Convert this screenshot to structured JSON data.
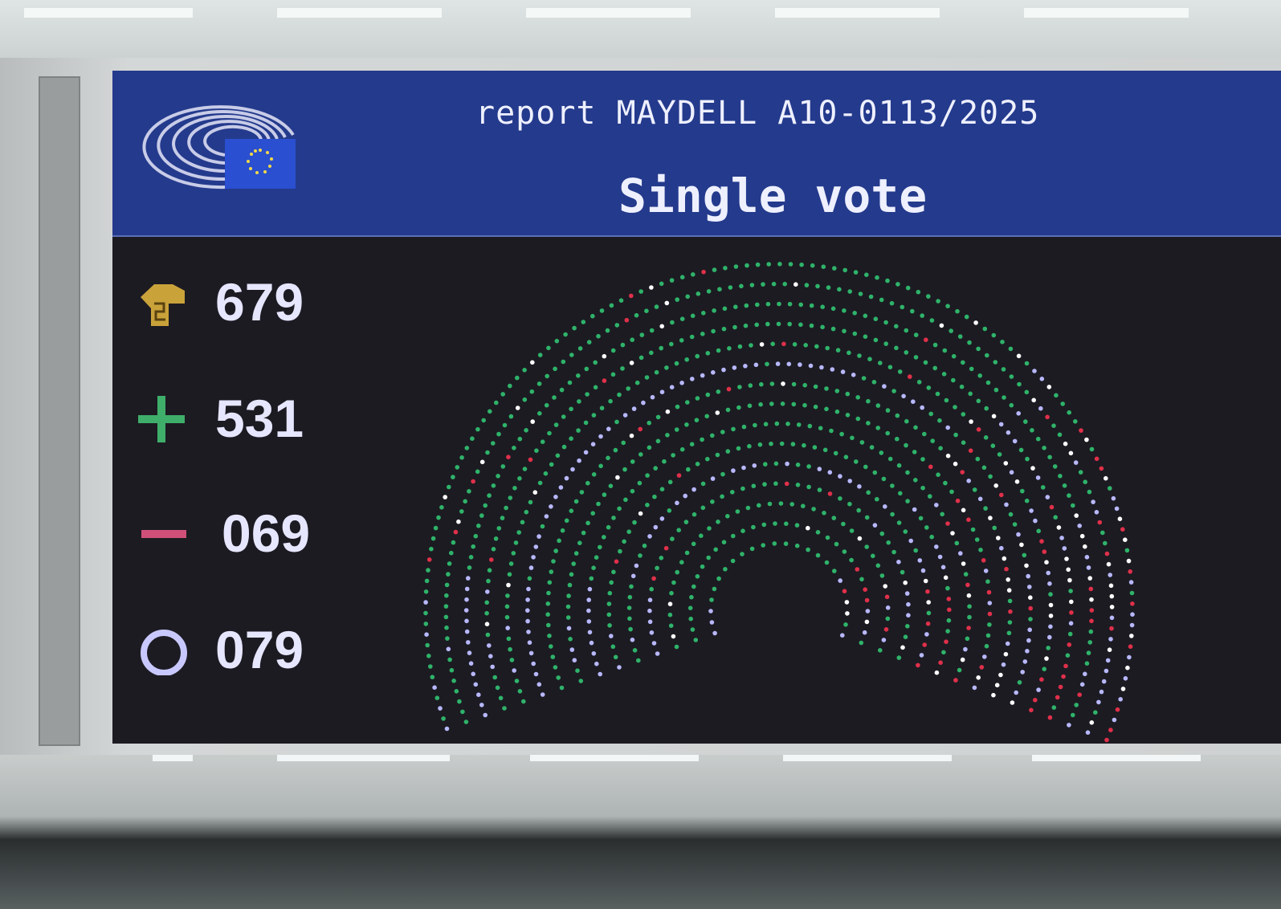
{
  "screen": {
    "report_line": "report MAYDELL A10-0113/2025",
    "title": "Single vote",
    "logo": "European Parliament logo"
  },
  "results": [
    {
      "key": "voted",
      "icon": "raised-hand-icon",
      "value": "679",
      "color": "#c9a23a"
    },
    {
      "key": "for",
      "icon": "plus-icon",
      "value": "531",
      "color": "#3fae6a"
    },
    {
      "key": "against",
      "icon": "minus-icon",
      "value": "069",
      "color": "#d0507a"
    },
    {
      "key": "abstention",
      "icon": "circle-icon",
      "value": "079",
      "color": "#c8c8ff"
    }
  ],
  "seat_colors": {
    "for": "#2fb36a",
    "against": "#e0304a",
    "abstention": "#b8b8ff",
    "not_voting": "#ffffff"
  }
}
